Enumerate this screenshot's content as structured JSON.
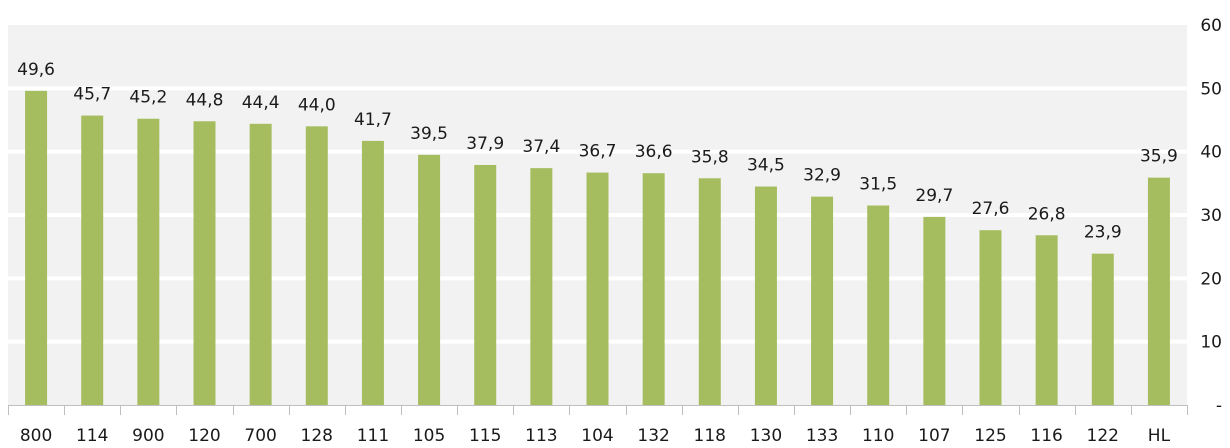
{
  "chart_data": {
    "type": "bar",
    "categories": [
      "800",
      "114",
      "900",
      "120",
      "700",
      "128",
      "111",
      "105",
      "115",
      "113",
      "104",
      "132",
      "118",
      "130",
      "133",
      "110",
      "107",
      "125",
      "116",
      "122",
      "HL"
    ],
    "values": [
      49.6,
      45.7,
      45.2,
      44.8,
      44.4,
      44.0,
      41.7,
      39.5,
      37.9,
      37.4,
      36.7,
      36.6,
      35.8,
      34.5,
      32.9,
      31.5,
      29.7,
      27.6,
      26.8,
      23.9,
      35.9
    ],
    "data_labels": [
      "49,6",
      "45,7",
      "45,2",
      "44,8",
      "44,4",
      "44,0",
      "41,7",
      "39,5",
      "37,9",
      "37,4",
      "36,7",
      "36,6",
      "35,8",
      "34,5",
      "32,9",
      "31,5",
      "29,7",
      "27,6",
      "26,8",
      "23,9",
      "35,9"
    ],
    "y_ticks": [
      {
        "value": 0,
        "label": "-"
      },
      {
        "value": 10,
        "label": "10"
      },
      {
        "value": 20,
        "label": "20"
      },
      {
        "value": 30,
        "label": "30"
      },
      {
        "value": 40,
        "label": "40"
      },
      {
        "value": 50,
        "label": "50"
      },
      {
        "value": 60,
        "label": "60"
      }
    ],
    "ylim": [
      0,
      60
    ],
    "y_axis_position": "right",
    "grid": true,
    "legend": "none",
    "colors": {
      "bar": "#a5bd5f",
      "plot_background": "#f2f2f2",
      "gridline": "#ffffff"
    }
  }
}
